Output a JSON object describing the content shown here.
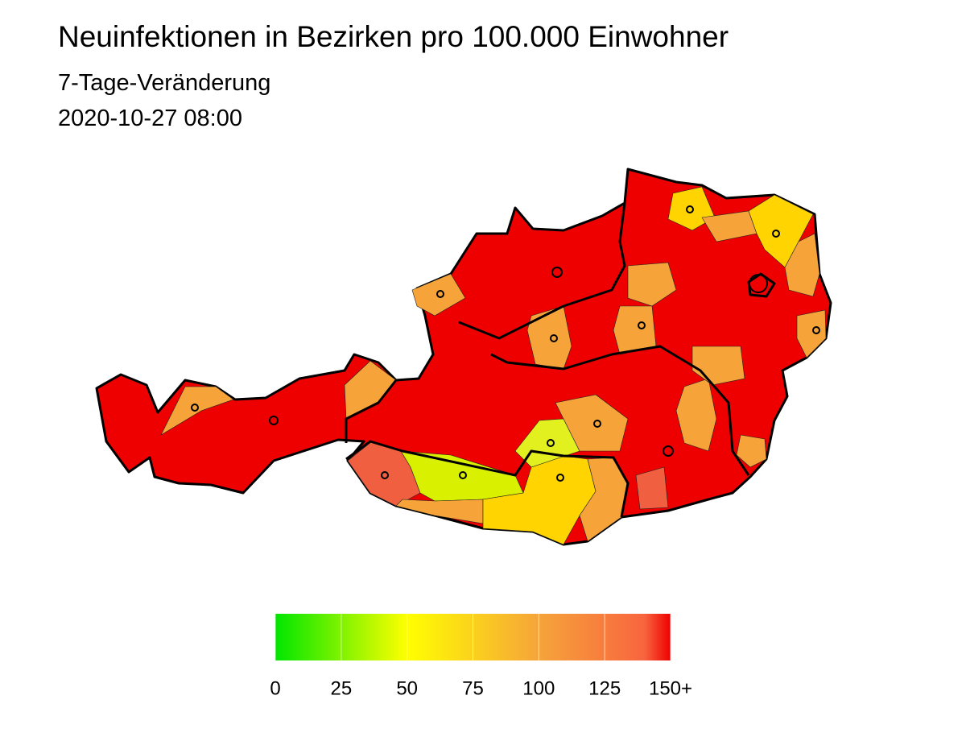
{
  "title": "Neuinfektionen in Bezirken pro 100.000 Einwohner",
  "subtitle": "7-Tage-Veränderung",
  "date": "2020-10-27 08:00",
  "legend": {
    "range": [
      0,
      150
    ],
    "ticks": [
      0,
      25,
      50,
      75,
      100,
      125,
      {
        "value": 150,
        "label": "150+"
      }
    ],
    "color_stops": [
      {
        "value": 0,
        "color": "#00e600"
      },
      {
        "value": 50,
        "color": "#ffff00"
      },
      {
        "value": 100,
        "color": "#f6a43a"
      },
      {
        "value": 140,
        "color": "#f8653f"
      },
      {
        "value": 150,
        "color": "#ee0000"
      }
    ]
  }
}
